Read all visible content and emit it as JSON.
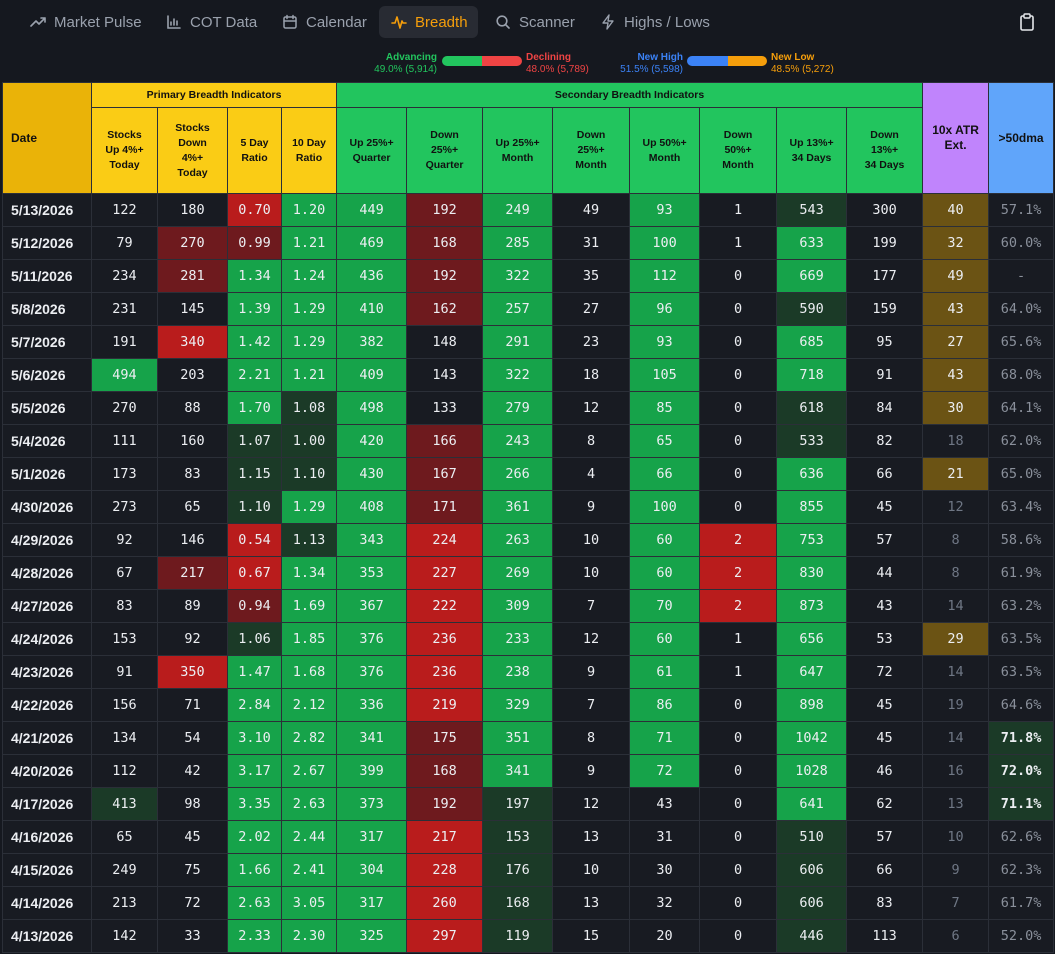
{
  "nav": {
    "tabs": [
      {
        "label": "Market Pulse",
        "icon": "trend-up-icon"
      },
      {
        "label": "COT Data",
        "icon": "bar-chart-icon"
      },
      {
        "label": "Calendar",
        "icon": "calendar-icon"
      },
      {
        "label": "Breadth",
        "icon": "pulse-icon",
        "active": true
      },
      {
        "label": "Scanner",
        "icon": "search-icon"
      },
      {
        "label": "Highs / Lows",
        "icon": "bolt-icon"
      }
    ],
    "clipboard_icon": "clipboard-icon"
  },
  "summary": {
    "advancing": {
      "label": "Advancing",
      "value": "49.0% (5,914)",
      "fraction": 0.505
    },
    "declining": {
      "label": "Declining",
      "value": "48.0% (5,789)",
      "fraction": 0.495
    },
    "new_high": {
      "label": "New High",
      "value": "51.5% (5,598)",
      "fraction": 0.515
    },
    "new_low": {
      "label": "New Low",
      "value": "48.5% (5,272)",
      "fraction": 0.485
    }
  },
  "colors": {
    "accent": "#f59e0b",
    "advancing": "#22c55e",
    "declining": "#ef4444",
    "new_high": "#3b82f6",
    "new_low": "#f59e0b"
  },
  "table": {
    "groups": {
      "date": "Date",
      "primary": "Primary Breadth Indicators",
      "secondary": "Secondary Breadth Indicators",
      "atr": "10x ATR Ext.",
      "dma": ">50dma"
    },
    "headers": [
      [
        "Stocks",
        "Up 4%+",
        "Today"
      ],
      [
        "Stocks",
        "Down",
        "4%+",
        "Today"
      ],
      [
        "5 Day",
        "Ratio"
      ],
      [
        "10 Day",
        "Ratio"
      ],
      [
        "Up 25%+",
        "Quarter"
      ],
      [
        "Down",
        "25%+",
        "Quarter"
      ],
      [
        "Up 25%+",
        "Month"
      ],
      [
        "Down",
        "25%+",
        "Month"
      ],
      [
        "Up 50%+",
        "Month"
      ],
      [
        "Down",
        "50%+",
        "Month"
      ],
      [
        "Up 13%+",
        "34 Days"
      ],
      [
        "Down",
        "13%+",
        "34 Days"
      ]
    ],
    "rows": [
      {
        "date": "5/13/2026",
        "up4": "122",
        "down4": "180",
        "r5": "0.70",
        "r10": "1.20",
        "up25q": "449",
        "down25q": "192",
        "up25m": "249",
        "down25m": "49",
        "up50m": "93",
        "down50m": "1",
        "up13": "543",
        "down13": "300",
        "atr": "40",
        "dma": "57.1%"
      },
      {
        "date": "5/12/2026",
        "up4": "79",
        "down4": "270",
        "r5": "0.99",
        "r10": "1.21",
        "up25q": "469",
        "down25q": "168",
        "up25m": "285",
        "down25m": "31",
        "up50m": "100",
        "down50m": "1",
        "up13": "633",
        "down13": "199",
        "atr": "32",
        "dma": "60.0%"
      },
      {
        "date": "5/11/2026",
        "up4": "234",
        "down4": "281",
        "r5": "1.34",
        "r10": "1.24",
        "up25q": "436",
        "down25q": "192",
        "up25m": "322",
        "down25m": "35",
        "up50m": "112",
        "down50m": "0",
        "up13": "669",
        "down13": "177",
        "atr": "49",
        "dma": "-"
      },
      {
        "date": "5/8/2026",
        "up4": "231",
        "down4": "145",
        "r5": "1.39",
        "r10": "1.29",
        "up25q": "410",
        "down25q": "162",
        "up25m": "257",
        "down25m": "27",
        "up50m": "96",
        "down50m": "0",
        "up13": "590",
        "down13": "159",
        "atr": "43",
        "dma": "64.0%"
      },
      {
        "date": "5/7/2026",
        "up4": "191",
        "down4": "340",
        "r5": "1.42",
        "r10": "1.29",
        "up25q": "382",
        "down25q": "148",
        "up25m": "291",
        "down25m": "23",
        "up50m": "93",
        "down50m": "0",
        "up13": "685",
        "down13": "95",
        "atr": "27",
        "dma": "65.6%"
      },
      {
        "date": "5/6/2026",
        "up4": "494",
        "down4": "203",
        "r5": "2.21",
        "r10": "1.21",
        "up25q": "409",
        "down25q": "143",
        "up25m": "322",
        "down25m": "18",
        "up50m": "105",
        "down50m": "0",
        "up13": "718",
        "down13": "91",
        "atr": "43",
        "dma": "68.0%"
      },
      {
        "date": "5/5/2026",
        "up4": "270",
        "down4": "88",
        "r5": "1.70",
        "r10": "1.08",
        "up25q": "498",
        "down25q": "133",
        "up25m": "279",
        "down25m": "12",
        "up50m": "85",
        "down50m": "0",
        "up13": "618",
        "down13": "84",
        "atr": "30",
        "dma": "64.1%"
      },
      {
        "date": "5/4/2026",
        "up4": "111",
        "down4": "160",
        "r5": "1.07",
        "r10": "1.00",
        "up25q": "420",
        "down25q": "166",
        "up25m": "243",
        "down25m": "8",
        "up50m": "65",
        "down50m": "0",
        "up13": "533",
        "down13": "82",
        "atr": "18",
        "dma": "62.0%"
      },
      {
        "date": "5/1/2026",
        "up4": "173",
        "down4": "83",
        "r5": "1.15",
        "r10": "1.10",
        "up25q": "430",
        "down25q": "167",
        "up25m": "266",
        "down25m": "4",
        "up50m": "66",
        "down50m": "0",
        "up13": "636",
        "down13": "66",
        "atr": "21",
        "dma": "65.0%"
      },
      {
        "date": "4/30/2026",
        "up4": "273",
        "down4": "65",
        "r5": "1.10",
        "r10": "1.29",
        "up25q": "408",
        "down25q": "171",
        "up25m": "361",
        "down25m": "9",
        "up50m": "100",
        "down50m": "0",
        "up13": "855",
        "down13": "45",
        "atr": "12",
        "dma": "63.4%"
      },
      {
        "date": "4/29/2026",
        "up4": "92",
        "down4": "146",
        "r5": "0.54",
        "r10": "1.13",
        "up25q": "343",
        "down25q": "224",
        "up25m": "263",
        "down25m": "10",
        "up50m": "60",
        "down50m": "2",
        "up13": "753",
        "down13": "57",
        "atr": "8",
        "dma": "58.6%"
      },
      {
        "date": "4/28/2026",
        "up4": "67",
        "down4": "217",
        "r5": "0.67",
        "r10": "1.34",
        "up25q": "353",
        "down25q": "227",
        "up25m": "269",
        "down25m": "10",
        "up50m": "60",
        "down50m": "2",
        "up13": "830",
        "down13": "44",
        "atr": "8",
        "dma": "61.9%"
      },
      {
        "date": "4/27/2026",
        "up4": "83",
        "down4": "89",
        "r5": "0.94",
        "r10": "1.69",
        "up25q": "367",
        "down25q": "222",
        "up25m": "309",
        "down25m": "7",
        "up50m": "70",
        "down50m": "2",
        "up13": "873",
        "down13": "43",
        "atr": "14",
        "dma": "63.2%"
      },
      {
        "date": "4/24/2026",
        "up4": "153",
        "down4": "92",
        "r5": "1.06",
        "r10": "1.85",
        "up25q": "376",
        "down25q": "236",
        "up25m": "233",
        "down25m": "12",
        "up50m": "60",
        "down50m": "1",
        "up13": "656",
        "down13": "53",
        "atr": "29",
        "dma": "63.5%"
      },
      {
        "date": "4/23/2026",
        "up4": "91",
        "down4": "350",
        "r5": "1.47",
        "r10": "1.68",
        "up25q": "376",
        "down25q": "236",
        "up25m": "238",
        "down25m": "9",
        "up50m": "61",
        "down50m": "1",
        "up13": "647",
        "down13": "72",
        "atr": "14",
        "dma": "63.5%"
      },
      {
        "date": "4/22/2026",
        "up4": "156",
        "down4": "71",
        "r5": "2.84",
        "r10": "2.12",
        "up25q": "336",
        "down25q": "219",
        "up25m": "329",
        "down25m": "7",
        "up50m": "86",
        "down50m": "0",
        "up13": "898",
        "down13": "45",
        "atr": "19",
        "dma": "64.6%"
      },
      {
        "date": "4/21/2026",
        "up4": "134",
        "down4": "54",
        "r5": "3.10",
        "r10": "2.82",
        "up25q": "341",
        "down25q": "175",
        "up25m": "351",
        "down25m": "8",
        "up50m": "71",
        "down50m": "0",
        "up13": "1042",
        "down13": "45",
        "atr": "14",
        "dma": "71.8%"
      },
      {
        "date": "4/20/2026",
        "up4": "112",
        "down4": "42",
        "r5": "3.17",
        "r10": "2.67",
        "up25q": "399",
        "down25q": "168",
        "up25m": "341",
        "down25m": "9",
        "up50m": "72",
        "down50m": "0",
        "up13": "1028",
        "down13": "46",
        "atr": "16",
        "dma": "72.0%"
      },
      {
        "date": "4/17/2026",
        "up4": "413",
        "down4": "98",
        "r5": "3.35",
        "r10": "2.63",
        "up25q": "373",
        "down25q": "192",
        "up25m": "197",
        "down25m": "12",
        "up50m": "43",
        "down50m": "0",
        "up13": "641",
        "down13": "62",
        "atr": "13",
        "dma": "71.1%"
      },
      {
        "date": "4/16/2026",
        "up4": "65",
        "down4": "45",
        "r5": "2.02",
        "r10": "2.44",
        "up25q": "317",
        "down25q": "217",
        "up25m": "153",
        "down25m": "13",
        "up50m": "31",
        "down50m": "0",
        "up13": "510",
        "down13": "57",
        "atr": "10",
        "dma": "62.6%"
      },
      {
        "date": "4/15/2026",
        "up4": "249",
        "down4": "75",
        "r5": "1.66",
        "r10": "2.41",
        "up25q": "304",
        "down25q": "228",
        "up25m": "176",
        "down25m": "10",
        "up50m": "30",
        "down50m": "0",
        "up13": "606",
        "down13": "66",
        "atr": "9",
        "dma": "62.3%"
      },
      {
        "date": "4/14/2026",
        "up4": "213",
        "down4": "72",
        "r5": "2.63",
        "r10": "3.05",
        "up25q": "317",
        "down25q": "260",
        "up25m": "168",
        "down25m": "13",
        "up50m": "32",
        "down50m": "0",
        "up13": "606",
        "down13": "83",
        "atr": "7",
        "dma": "61.7%"
      },
      {
        "date": "4/13/2026",
        "up4": "142",
        "down4": "33",
        "r5": "2.33",
        "r10": "2.30",
        "up25q": "325",
        "down25q": "297",
        "up25m": "119",
        "down25m": "15",
        "up50m": "20",
        "down50m": "0",
        "up13": "446",
        "down13": "113",
        "atr": "6",
        "dma": "52.0%"
      }
    ]
  }
}
